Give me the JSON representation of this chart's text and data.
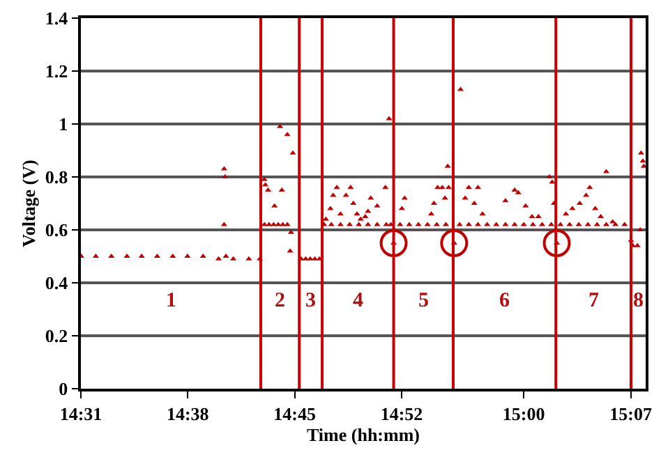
{
  "chart_data": {
    "type": "scatter",
    "xlabel": "Time (hh:mm)",
    "ylabel": "Voltage (V)",
    "xlim": [
      14.5167,
      15.133
    ],
    "ylim": [
      0,
      1.4
    ],
    "xticks": [
      {
        "value": 14.5167,
        "label": "14:31"
      },
      {
        "value": 14.6333,
        "label": "14:38"
      },
      {
        "value": 14.75,
        "label": "14:45"
      },
      {
        "value": 14.8667,
        "label": "14:52"
      },
      {
        "value": 15.0,
        "label": "15:00"
      },
      {
        "value": 15.1167,
        "label": "15:07"
      }
    ],
    "yticks": [
      0,
      0.2,
      0.4,
      0.6,
      0.8,
      1,
      1.2,
      1.4
    ],
    "grid": "y",
    "series": [
      {
        "color": "#c00000",
        "marker": "triangle",
        "x": [
          14.517,
          14.533,
          14.55,
          14.567,
          14.583,
          14.6,
          14.617,
          14.633,
          14.65,
          14.667,
          14.683,
          14.7,
          14.712,
          14.673,
          14.673,
          14.674,
          14.675,
          14.717,
          14.722,
          14.727,
          14.732,
          14.737,
          14.742,
          14.717,
          14.718,
          14.721,
          14.728,
          14.734,
          14.736,
          14.742,
          14.745,
          14.746,
          14.748,
          14.757,
          14.762,
          14.767,
          14.772,
          14.777,
          14.782,
          14.79,
          14.8,
          14.81,
          14.82,
          14.83,
          14.84,
          14.85,
          14.855,
          14.784,
          14.789,
          14.792,
          14.796,
          14.8,
          14.806,
          14.811,
          14.814,
          14.818,
          14.822,
          14.827,
          14.83,
          14.833,
          14.84,
          14.849,
          14.853,
          14.858,
          14.865,
          14.875,
          14.885,
          14.895,
          14.905,
          14.915,
          14.867,
          14.87,
          14.899,
          14.902,
          14.906,
          14.911,
          14.914,
          14.917,
          14.918,
          14.924,
          14.93,
          14.94,
          14.95,
          14.96,
          14.97,
          14.98,
          14.99,
          15.0,
          15.01,
          15.02,
          15.03,
          14.931,
          14.936,
          14.94,
          14.946,
          14.95,
          14.955,
          14.98,
          14.99,
          14.994,
          15.002,
          15.009,
          15.016,
          15.028,
          15.031,
          15.033,
          15.036,
          15.04,
          15.05,
          15.06,
          15.07,
          15.08,
          15.09,
          15.1,
          15.11,
          15.046,
          15.053,
          15.061,
          15.068,
          15.072,
          15.078,
          15.084,
          15.09,
          15.097,
          15.117,
          15.119,
          15.124,
          15.127,
          15.128,
          15.13,
          15.131
        ],
        "values": [
          0.5,
          0.5,
          0.5,
          0.5,
          0.5,
          0.5,
          0.5,
          0.5,
          0.5,
          0.49,
          0.49,
          0.49,
          0.49,
          0.62,
          0.83,
          0.8,
          0.5,
          0.62,
          0.62,
          0.62,
          0.62,
          0.62,
          0.62,
          0.79,
          0.77,
          0.75,
          0.69,
          0.99,
          0.75,
          0.96,
          0.52,
          0.59,
          0.89,
          0.49,
          0.49,
          0.49,
          0.49,
          0.49,
          0.62,
          0.62,
          0.62,
          0.62,
          0.62,
          0.62,
          0.62,
          0.62,
          0.62,
          0.64,
          0.68,
          0.73,
          0.76,
          0.66,
          0.73,
          0.76,
          0.7,
          0.66,
          0.64,
          0.65,
          0.67,
          0.72,
          0.69,
          0.76,
          1.02,
          0.55,
          0.62,
          0.62,
          0.62,
          0.62,
          0.62,
          0.62,
          0.68,
          0.72,
          0.66,
          0.7,
          0.76,
          0.76,
          0.72,
          0.84,
          0.76,
          0.55,
          0.62,
          0.62,
          0.62,
          0.62,
          0.62,
          0.62,
          0.62,
          0.62,
          0.62,
          0.62,
          0.62,
          1.13,
          0.72,
          0.76,
          0.7,
          0.76,
          0.66,
          0.71,
          0.75,
          0.74,
          0.69,
          0.65,
          0.65,
          0.8,
          0.78,
          0.7,
          0.55,
          0.62,
          0.62,
          0.62,
          0.62,
          0.62,
          0.62,
          0.62,
          0.62,
          0.66,
          0.68,
          0.7,
          0.73,
          0.76,
          0.68,
          0.65,
          0.82,
          0.63,
          0.56,
          0.54,
          0.54,
          0.6,
          0.89,
          0.86,
          0.84
        ]
      },
      {
        "color": "#c00000",
        "marker": "circle",
        "x": [
          14.858,
          14.924,
          15.036
        ],
        "values": [
          0.55,
          0.55,
          0.55
        ]
      }
    ],
    "ref_lines": [
      {
        "axis": "x",
        "value": 14.713,
        "color": "#cc0000"
      },
      {
        "axis": "x",
        "value": 14.755,
        "color": "#cc0000"
      },
      {
        "axis": "x",
        "value": 14.78,
        "color": "#cc0000"
      },
      {
        "axis": "x",
        "value": 14.858,
        "color": "#cc0000"
      },
      {
        "axis": "x",
        "value": 14.923,
        "color": "#cc0000"
      },
      {
        "axis": "x",
        "value": 15.035,
        "color": "#cc0000"
      },
      {
        "axis": "x",
        "value": 15.117,
        "color": "#cc0000"
      }
    ],
    "annotations": [
      "1",
      "2",
      "3",
      "4",
      "5",
      "6",
      "7",
      "8"
    ]
  }
}
